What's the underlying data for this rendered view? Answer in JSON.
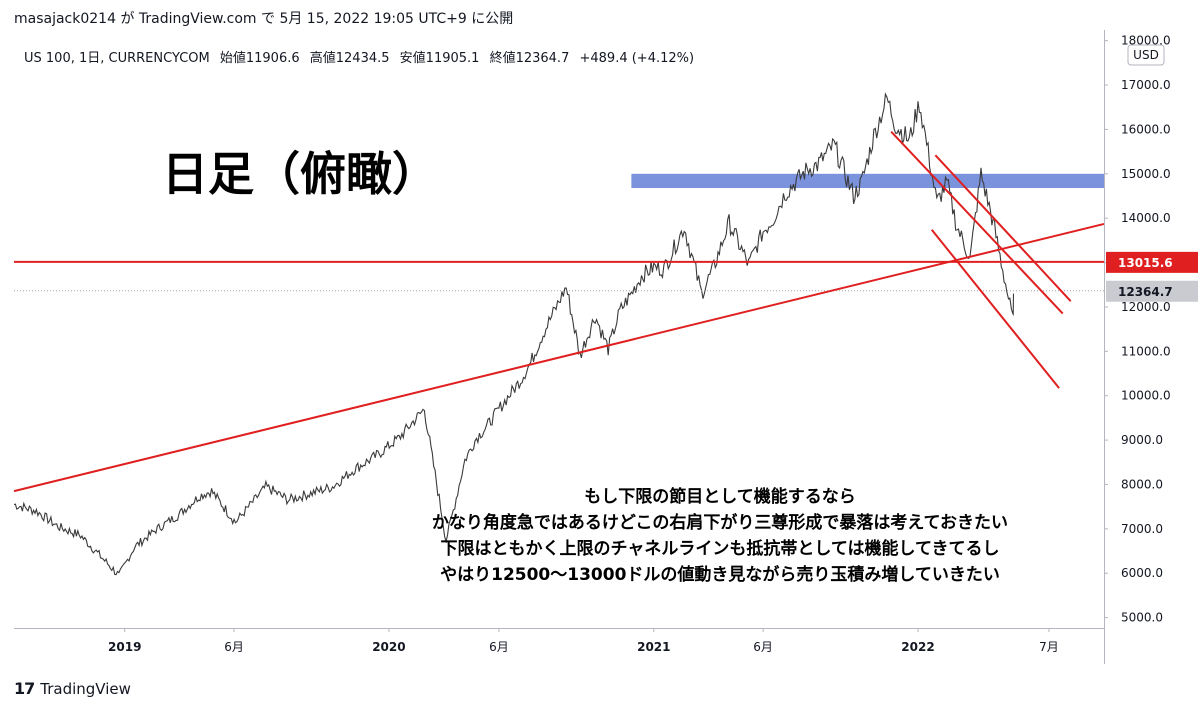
{
  "header": {
    "publish_line": "masajack0214 が TradingView.com で 5月 15, 2022 19:05 UTC+9 に公開"
  },
  "legend": {
    "symbol": "US 100, 1日, CURRENCYCOM",
    "open": "始値11906.6",
    "high": "高値12434.5",
    "low": "安値11905.1",
    "close": "終値12364.7",
    "change": "+489.4 (+4.12%)"
  },
  "annotation_title": "日足（俯瞰）",
  "comment_lines": [
    "もし下限の節目として機能するなら",
    "かなり角度急ではあるけどこの右肩下がり三尊形成で暴落は考えておきたい",
    "下限はともかく上限のチャネルラインも抵抗帯としては機能してきてるし",
    "やはり12500〜13000ドルの値動き見ながら売り玉積み増していきたい"
  ],
  "footer": {
    "logo_mark": "17",
    "brand": "TradingView"
  },
  "chart_data": {
    "type": "line",
    "currency_label": "USD",
    "y_ticks": [
      "5000.0",
      "6000.0",
      "7000.0",
      "8000.0",
      "9000.0",
      "10000.0",
      "11000.0",
      "12000.0",
      "13000.0",
      "14000.0",
      "15000.0",
      "16000.0",
      "17000.0",
      "18000.0"
    ],
    "y_tick_values": [
      5000,
      6000,
      7000,
      8000,
      9000,
      10000,
      11000,
      12000,
      13000,
      14000,
      15000,
      16000,
      17000,
      18000
    ],
    "ylim": [
      4700,
      18300
    ],
    "x_range": [
      "2018-08-01",
      "2022-09-15"
    ],
    "x_ticks": [
      {
        "label": "2019",
        "date": "2019-01-01",
        "bold": true
      },
      {
        "label": "6月",
        "date": "2019-06-01",
        "bold": false
      },
      {
        "label": "2020",
        "date": "2020-01-01",
        "bold": true
      },
      {
        "label": "6月",
        "date": "2020-06-01",
        "bold": false
      },
      {
        "label": "2021",
        "date": "2021-01-01",
        "bold": true
      },
      {
        "label": "6月",
        "date": "2021-06-01",
        "bold": false
      },
      {
        "label": "2022",
        "date": "2022-01-01",
        "bold": true
      },
      {
        "label": "7月",
        "date": "2022-07-01",
        "bold": false
      }
    ],
    "series": [
      {
        "dates": [
          "2018-08-01",
          "2018-09-01",
          "2018-10-01",
          "2018-11-01",
          "2018-12-24",
          "2019-01-15",
          "2019-02-15",
          "2019-03-15",
          "2019-04-15",
          "2019-05-01",
          "2019-06-03",
          "2019-07-15",
          "2019-08-15",
          "2019-09-15",
          "2019-10-15",
          "2019-11-15",
          "2019-12-15",
          "2020-01-15",
          "2020-02-19",
          "2020-03-01",
          "2020-03-20",
          "2020-04-01",
          "2020-04-15",
          "2020-05-01",
          "2020-05-15",
          "2020-06-01",
          "2020-06-15",
          "2020-07-01",
          "2020-07-15",
          "2020-08-01",
          "2020-09-02",
          "2020-09-21",
          "2020-10-12",
          "2020-10-30",
          "2020-11-15",
          "2020-12-01",
          "2020-12-15",
          "2021-01-01",
          "2021-01-15",
          "2021-02-12",
          "2021-03-08",
          "2021-03-25",
          "2021-04-15",
          "2021-05-12",
          "2021-06-01",
          "2021-06-15",
          "2021-07-01",
          "2021-07-15",
          "2021-08-01",
          "2021-08-15",
          "2021-09-07",
          "2021-10-04",
          "2021-10-15",
          "2021-11-01",
          "2021-11-19",
          "2021-12-01",
          "2021-12-20",
          "2022-01-03",
          "2022-01-15",
          "2022-01-27",
          "2022-02-10",
          "2022-02-24",
          "2022-03-14",
          "2022-03-29",
          "2022-04-15",
          "2022-04-28",
          "2022-05-12",
          "2022-05-13"
        ],
        "values": [
          7550,
          7400,
          7050,
          6850,
          5950,
          6600,
          7000,
          7300,
          7750,
          7850,
          7150,
          7950,
          7650,
          7800,
          7950,
          8350,
          8650,
          9050,
          9700,
          8600,
          6750,
          7550,
          8550,
          9050,
          9300,
          9700,
          10000,
          10350,
          10750,
          11400,
          12450,
          10900,
          11800,
          11050,
          11900,
          12300,
          12700,
          12900,
          12850,
          13800,
          12300,
          12900,
          13900,
          12950,
          13700,
          13980,
          14550,
          14800,
          15100,
          15200,
          15650,
          14500,
          14800,
          15850,
          16700,
          16100,
          15750,
          16600,
          15500,
          14350,
          14800,
          13800,
          13100,
          15000,
          13900,
          12850,
          11700,
          12300
        ]
      }
    ],
    "drawings": {
      "horizontal_line": {
        "value": 13015.6,
        "label": "13015.6"
      },
      "last_price": {
        "value": 12364.7,
        "label": "12364.7"
      },
      "resistance_zone": {
        "from": "2020-12-01",
        "to": "2022-09-15",
        "low": 14680,
        "high": 15000
      },
      "trendlines": [
        {
          "d1": "2018-08-01",
          "v1": 7850,
          "d2": "2022-09-15",
          "v2": 13870
        },
        {
          "d1": "2021-11-25",
          "v1": 15950,
          "d2": "2022-07-20",
          "v2": 11850
        },
        {
          "d1": "2022-01-25",
          "v1": 15420,
          "d2": "2022-07-31",
          "v2": 12130
        },
        {
          "d1": "2022-01-20",
          "v1": 13740,
          "d2": "2022-07-15",
          "v2": 10170
        }
      ]
    }
  }
}
